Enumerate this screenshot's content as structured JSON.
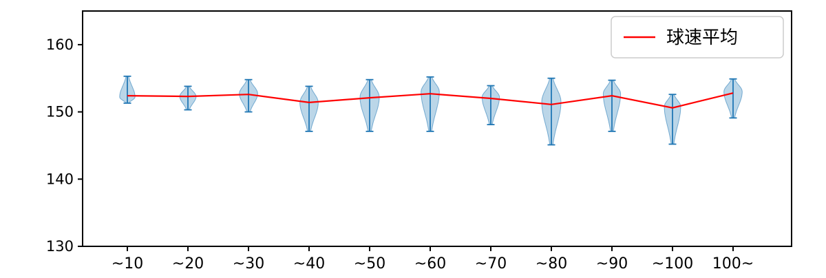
{
  "figure": {
    "background": "#ffffff"
  },
  "chart_data": {
    "type": "violin",
    "title": "",
    "xlabel": "",
    "ylabel": "",
    "categories": [
      "~10",
      "~20",
      "~30",
      "~40",
      "~50",
      "~60",
      "~70",
      "~80",
      "~90",
      "~100",
      "100~"
    ],
    "y_ticks": [
      "130",
      "140",
      "150",
      "160"
    ],
    "ylim": [
      130,
      165
    ],
    "grid": false,
    "legend": {
      "position": "upper right",
      "entries": [
        {
          "label": "球速平均",
          "color": "#ff0000",
          "type": "line"
        }
      ]
    },
    "violins": [
      {
        "category": "~10",
        "min": 151.3,
        "max": 155.3,
        "peak": 152.2,
        "width": 0.8
      },
      {
        "category": "~20",
        "min": 150.3,
        "max": 153.8,
        "peak": 152.3,
        "width": 0.85
      },
      {
        "category": "~30",
        "min": 150.0,
        "max": 154.8,
        "peak": 152.7,
        "width": 0.95
      },
      {
        "category": "~40",
        "min": 147.1,
        "max": 153.8,
        "peak": 151.4,
        "width": 0.95
      },
      {
        "category": "~50",
        "min": 147.1,
        "max": 154.8,
        "peak": 152.2,
        "width": 1.0
      },
      {
        "category": "~60",
        "min": 147.1,
        "max": 155.2,
        "peak": 153.0,
        "width": 0.95
      },
      {
        "category": "~70",
        "min": 148.1,
        "max": 153.9,
        "peak": 152.2,
        "width": 0.9
      },
      {
        "category": "~80",
        "min": 145.1,
        "max": 155.0,
        "peak": 151.5,
        "width": 1.0
      },
      {
        "category": "~90",
        "min": 147.1,
        "max": 154.7,
        "peak": 152.7,
        "width": 0.9
      },
      {
        "category": "~100",
        "min": 145.2,
        "max": 152.6,
        "peak": 150.8,
        "width": 0.85
      },
      {
        "category": "100~",
        "min": 149.1,
        "max": 154.9,
        "peak": 153.0,
        "width": 0.95
      }
    ],
    "series": [
      {
        "name": "球速平均",
        "type": "line",
        "color": "#ff0000",
        "values": [
          152.4,
          152.3,
          152.6,
          151.4,
          152.1,
          152.7,
          152.0,
          151.1,
          152.4,
          150.6,
          152.8
        ]
      }
    ],
    "colors": {
      "violin_fill": "#1f77b4",
      "violin_fill_opacity": 0.3,
      "whisker": "#2077b4",
      "mean_line": "#ff0000",
      "axis": "#000000",
      "legend_border": "#cccccc"
    }
  }
}
